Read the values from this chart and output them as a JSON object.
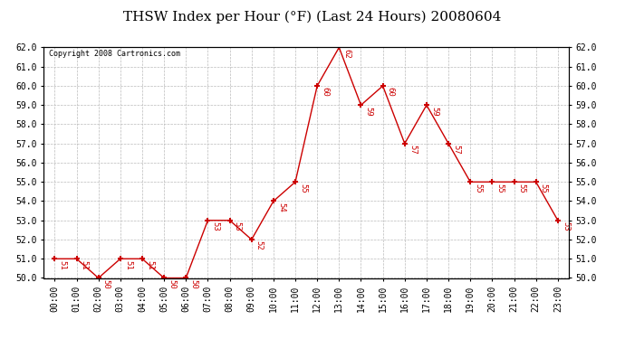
{
  "title": "THSW Index per Hour (°F) (Last 24 Hours) 20080604",
  "copyright": "Copyright 2008 Cartronics.com",
  "hours": [
    "00:00",
    "01:00",
    "02:00",
    "03:00",
    "04:00",
    "05:00",
    "06:00",
    "07:00",
    "08:00",
    "09:00",
    "10:00",
    "11:00",
    "12:00",
    "13:00",
    "14:00",
    "15:00",
    "16:00",
    "17:00",
    "18:00",
    "19:00",
    "20:00",
    "21:00",
    "22:00",
    "23:00"
  ],
  "values": [
    51,
    51,
    50,
    51,
    51,
    50,
    50,
    53,
    53,
    52,
    54,
    55,
    60,
    62,
    59,
    60,
    57,
    59,
    57,
    55,
    55,
    55,
    55,
    53
  ],
  "ylim": [
    50.0,
    62.0
  ],
  "yticks": [
    50.0,
    51.0,
    52.0,
    53.0,
    54.0,
    55.0,
    56.0,
    57.0,
    58.0,
    59.0,
    60.0,
    61.0,
    62.0
  ],
  "line_color": "#cc0000",
  "marker_color": "#cc0000",
  "bg_color": "#ffffff",
  "grid_color": "#bbbbbb",
  "title_fontsize": 11,
  "label_fontsize": 7,
  "annot_fontsize": 6.5,
  "copyright_fontsize": 6
}
